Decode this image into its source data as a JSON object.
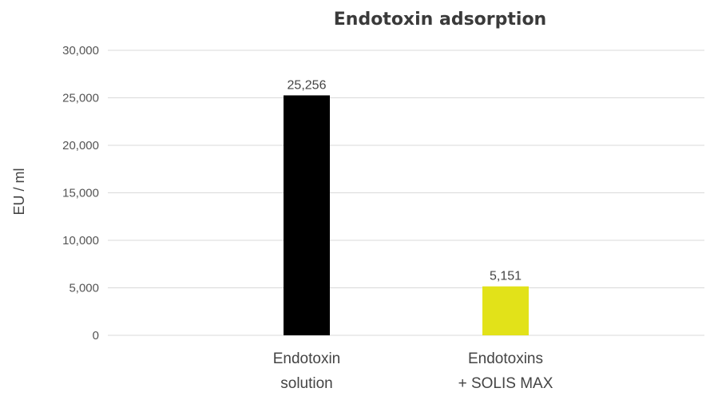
{
  "chart_data": {
    "type": "bar",
    "title": "Endotoxin adsorption",
    "xlabel": "",
    "ylabel": "EU / ml",
    "ylim": [
      0,
      30000
    ],
    "yticks": [
      0,
      5000,
      10000,
      15000,
      20000,
      25000,
      30000
    ],
    "ytick_labels": [
      "0",
      "5,000",
      "10,000",
      "15,000",
      "20,000",
      "25,000",
      "30,000"
    ],
    "grid": true,
    "categories": [
      [
        "Endotoxin",
        "solution"
      ],
      [
        "Endotoxins",
        "+ SOLIS MAX"
      ]
    ],
    "values": [
      25256,
      5151
    ],
    "data_labels": [
      "25,256",
      "5,151"
    ],
    "colors": [
      "#000000",
      "#e2e219"
    ]
  }
}
